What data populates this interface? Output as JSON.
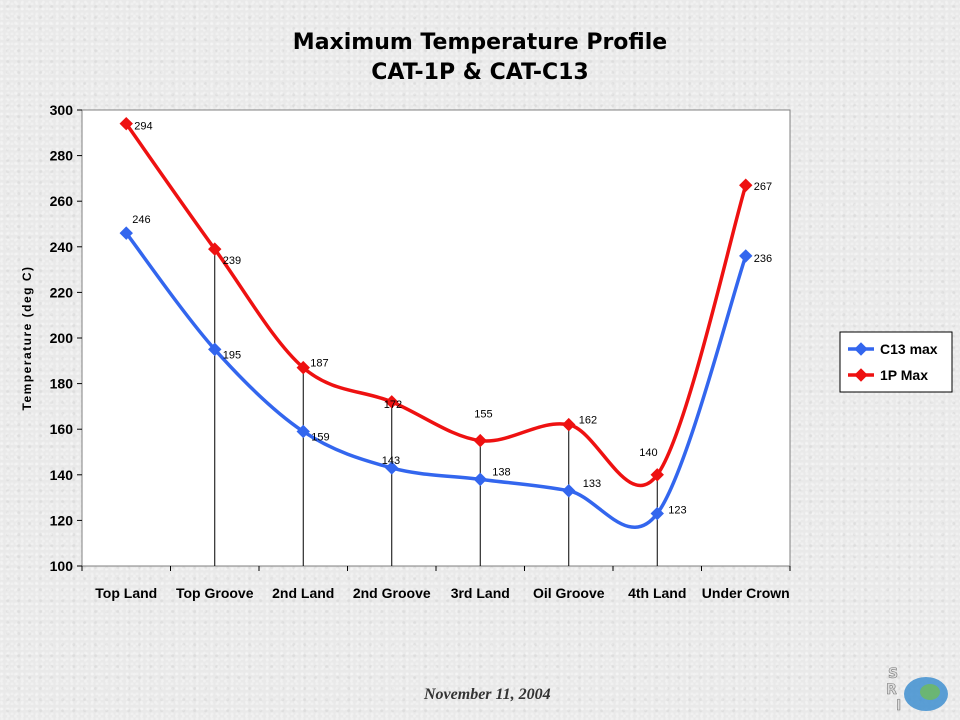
{
  "slide": {
    "title_line1": "Maximum Temperature Profile",
    "title_line2": "CAT-1P & CAT-C13",
    "footer_date": "November 11, 2004",
    "logo_letters": [
      "S",
      "R",
      "I"
    ]
  },
  "chart_data": {
    "type": "line",
    "title": "",
    "xlabel": "",
    "ylabel": "Temperature (deg C)",
    "ylim": [
      100,
      300
    ],
    "yticks": [
      100,
      120,
      140,
      160,
      180,
      200,
      220,
      240,
      260,
      280,
      300
    ],
    "grid": false,
    "legend_position": "right",
    "categories": [
      "Top Land",
      "Top Groove",
      "2nd Land",
      "2nd Groove",
      "3rd Land",
      "Oil Groove",
      "4th Land",
      "Under Crown"
    ],
    "series": [
      {
        "name": "C13 max",
        "color": "#3366ee",
        "values": [
          246,
          195,
          159,
          143,
          138,
          133,
          123,
          236
        ]
      },
      {
        "name": "1P Max",
        "color": "#ee1111",
        "values": [
          294,
          239,
          187,
          172,
          155,
          162,
          140,
          267
        ]
      }
    ]
  }
}
